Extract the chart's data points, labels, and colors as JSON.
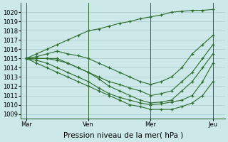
{
  "xlabel": "Pression niveau de la mer( hPa )",
  "bg_color": "#cce8e8",
  "grid_color": "#aacccc",
  "line_color": "#2d6b2d",
  "vline_color": "#2d6b2d",
  "ylim": [
    1008.5,
    1021.0
  ],
  "yticks": [
    1009,
    1010,
    1011,
    1012,
    1013,
    1014,
    1015,
    1016,
    1017,
    1018,
    1019,
    1020
  ],
  "xtick_labels": [
    "Mar",
    "Ven",
    "Mer",
    "Jeu"
  ],
  "xtick_positions": [
    0,
    36,
    72,
    108
  ],
  "vline_positions": [
    0,
    36,
    72,
    108
  ],
  "xlim": [
    -3,
    115
  ],
  "series": [
    {
      "x": [
        0,
        6,
        12,
        18,
        24,
        30,
        36,
        42,
        48,
        54,
        60,
        66,
        72,
        78,
        84,
        90,
        96,
        102,
        108
      ],
      "y": [
        1015.0,
        1015.5,
        1016.0,
        1016.5,
        1017.0,
        1017.5,
        1018.0,
        1018.2,
        1018.5,
        1018.8,
        1019.0,
        1019.3,
        1019.5,
        1019.7,
        1020.0,
        1020.1,
        1020.2,
        1020.2,
        1020.3
      ]
    },
    {
      "x": [
        0,
        6,
        12,
        18,
        24,
        30,
        36,
        42,
        48,
        54,
        60,
        66,
        72,
        78,
        84,
        90,
        96,
        102,
        108
      ],
      "y": [
        1015.0,
        1015.2,
        1015.5,
        1015.8,
        1015.5,
        1015.3,
        1015.0,
        1014.5,
        1014.0,
        1013.5,
        1013.0,
        1012.5,
        1012.2,
        1012.5,
        1013.0,
        1014.0,
        1015.5,
        1016.5,
        1017.5
      ]
    },
    {
      "x": [
        0,
        6,
        12,
        18,
        24,
        30,
        36,
        42,
        48,
        54,
        60,
        66,
        72,
        78,
        84,
        90,
        96,
        102,
        108
      ],
      "y": [
        1015.0,
        1015.0,
        1015.0,
        1015.0,
        1014.5,
        1014.0,
        1013.5,
        1013.0,
        1012.5,
        1012.2,
        1011.8,
        1011.5,
        1011.0,
        1011.2,
        1011.5,
        1012.5,
        1013.5,
        1015.0,
        1016.5
      ]
    },
    {
      "x": [
        0,
        6,
        12,
        18,
        24,
        30,
        36,
        42,
        48,
        54,
        60,
        66,
        72,
        78,
        84,
        90,
        96,
        102,
        108
      ],
      "y": [
        1015.0,
        1015.0,
        1015.0,
        1014.8,
        1014.5,
        1014.0,
        1013.5,
        1012.8,
        1012.0,
        1011.5,
        1011.0,
        1010.5,
        1010.2,
        1010.3,
        1010.5,
        1011.5,
        1012.5,
        1014.0,
        1015.5
      ]
    },
    {
      "x": [
        0,
        6,
        12,
        18,
        24,
        30,
        36,
        42,
        48,
        54,
        60,
        66,
        72,
        78,
        84,
        90,
        96,
        102,
        108
      ],
      "y": [
        1015.0,
        1014.8,
        1014.5,
        1014.0,
        1013.5,
        1013.0,
        1012.5,
        1011.8,
        1011.2,
        1010.8,
        1010.5,
        1010.2,
        1010.0,
        1010.1,
        1010.3,
        1010.5,
        1011.0,
        1012.5,
        1014.5
      ]
    },
    {
      "x": [
        0,
        6,
        12,
        18,
        24,
        30,
        36,
        42,
        48,
        54,
        60,
        66,
        72,
        78,
        84,
        90,
        96,
        102,
        108
      ],
      "y": [
        1015.0,
        1014.5,
        1014.0,
        1013.5,
        1013.0,
        1012.5,
        1012.0,
        1011.5,
        1011.0,
        1010.5,
        1010.0,
        1009.8,
        1009.5,
        1009.5,
        1009.5,
        1009.8,
        1010.2,
        1011.0,
        1012.5
      ]
    }
  ],
  "xlabel_fontsize": 7.5,
  "tick_fontsize": 6.0
}
